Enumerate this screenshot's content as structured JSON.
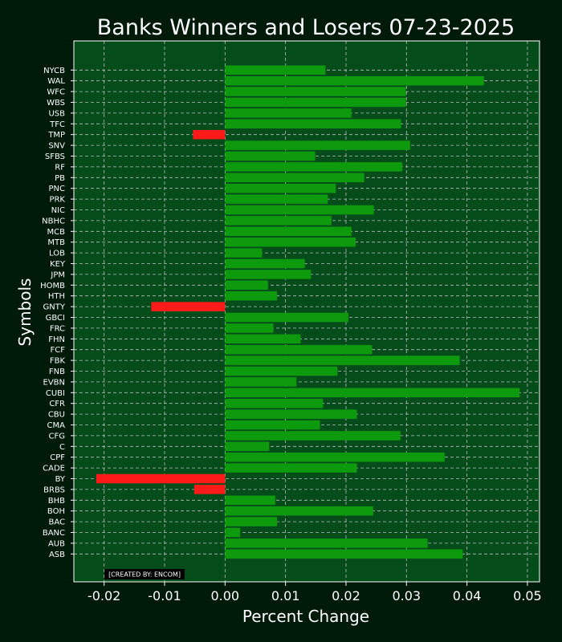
{
  "chart_data": {
    "type": "bar",
    "orientation": "horizontal",
    "title": "Banks Winners and Losers 07-23-2025",
    "xlabel": "Percent Change",
    "ylabel": "Symbols",
    "xlim": [
      -0.025,
      0.052
    ],
    "xticks": [
      "-0.02",
      "-0.01",
      "0.00",
      "0.01",
      "0.02",
      "0.03",
      "0.04",
      "0.05"
    ],
    "grid": true,
    "credit": "[CREATED BY: ENCOM]",
    "colors": {
      "background": "#001a0a",
      "plot_background": "#044d1a",
      "positive": "#0d9a0d",
      "negative": "#ff1a1a",
      "grid": "#bdbdbd"
    },
    "categories": [
      "NYCB",
      "WAL",
      "WFC",
      "WBS",
      "USB",
      "TFC",
      "TMP",
      "SNV",
      "SFBS",
      "RF",
      "PB",
      "PNC",
      "PRK",
      "NIC",
      "NBHC",
      "MCB",
      "MTB",
      "LOB",
      "KEY",
      "JPM",
      "HOMB",
      "HTH",
      "GNTY",
      "GBCI",
      "FRC",
      "FHN",
      "FCF",
      "FBK",
      "FNB",
      "EVBN",
      "CUBI",
      "CFR",
      "CBU",
      "CMA",
      "CFG",
      "C",
      "CPF",
      "CADE",
      "BY",
      "BRBS",
      "BHB",
      "BOH",
      "BAC",
      "BANC",
      "AUB",
      "ASB"
    ],
    "values": [
      0.0166,
      0.0428,
      0.0299,
      0.0299,
      0.0209,
      0.0291,
      -0.0053,
      0.0306,
      0.0149,
      0.0293,
      0.023,
      0.0183,
      0.017,
      0.0246,
      0.0176,
      0.0209,
      0.0216,
      0.0061,
      0.0132,
      0.0142,
      0.0071,
      0.0086,
      -0.0122,
      0.0204,
      0.008,
      0.0125,
      0.0243,
      0.0388,
      0.0186,
      0.0118,
      0.0487,
      0.0162,
      0.0218,
      0.0157,
      0.029,
      0.0073,
      0.0363,
      0.0218,
      -0.0213,
      -0.0051,
      0.0083,
      0.0245,
      0.0086,
      0.0025,
      0.0335,
      0.0393
    ]
  }
}
